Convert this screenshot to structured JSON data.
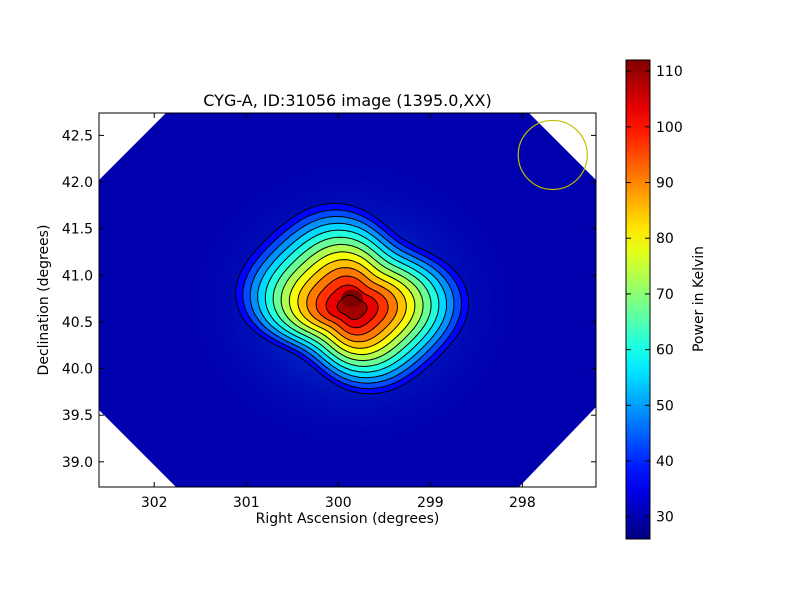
{
  "chart_data": {
    "type": "heatmap",
    "title": "CYG-A, ID:31056 image (1395.0,XX)",
    "xlabel": "Right Ascension (degrees)",
    "ylabel": "Declination (degrees)",
    "xlim": [
      302.6,
      297.2
    ],
    "ylim": [
      38.73,
      42.74
    ],
    "x_ticks": [
      {
        "value": 302,
        "label": "302"
      },
      {
        "value": 301,
        "label": "301"
      },
      {
        "value": 300,
        "label": "300"
      },
      {
        "value": 299,
        "label": "299"
      },
      {
        "value": 298,
        "label": "298"
      }
    ],
    "y_ticks": [
      {
        "value": 39.0,
        "label": "39.0"
      },
      {
        "value": 39.5,
        "label": "39.5"
      },
      {
        "value": 40.0,
        "label": "40.0"
      },
      {
        "value": 40.5,
        "label": "40.5"
      },
      {
        "value": 41.0,
        "label": "41.0"
      },
      {
        "value": 41.5,
        "label": "41.5"
      },
      {
        "value": 42.0,
        "label": "42.0"
      },
      {
        "value": 42.5,
        "label": "42.5"
      }
    ],
    "colorbar": {
      "label": "Power in Kelvin",
      "range": [
        26,
        112
      ],
      "colormap": "jet",
      "ticks": [
        {
          "value": 30,
          "label": "30"
        },
        {
          "value": 40,
          "label": "40"
        },
        {
          "value": 50,
          "label": "50"
        },
        {
          "value": 60,
          "label": "60"
        },
        {
          "value": 70,
          "label": "70"
        },
        {
          "value": 80,
          "label": "80"
        },
        {
          "value": 90,
          "label": "90"
        },
        {
          "value": 100,
          "label": "100"
        },
        {
          "value": 110,
          "label": "110"
        }
      ]
    },
    "source": {
      "ra": 299.85,
      "dec": 40.75,
      "peak": 112
    },
    "background_level": 30,
    "contour_levels": [
      34,
      40,
      46,
      52,
      58,
      64,
      70,
      76,
      82,
      88,
      94,
      100,
      106
    ],
    "beam_circle": {
      "ra": 297.67,
      "dec": 42.29,
      "radius_deg": 0.37,
      "color": "#bfbf00"
    },
    "grid": false
  }
}
